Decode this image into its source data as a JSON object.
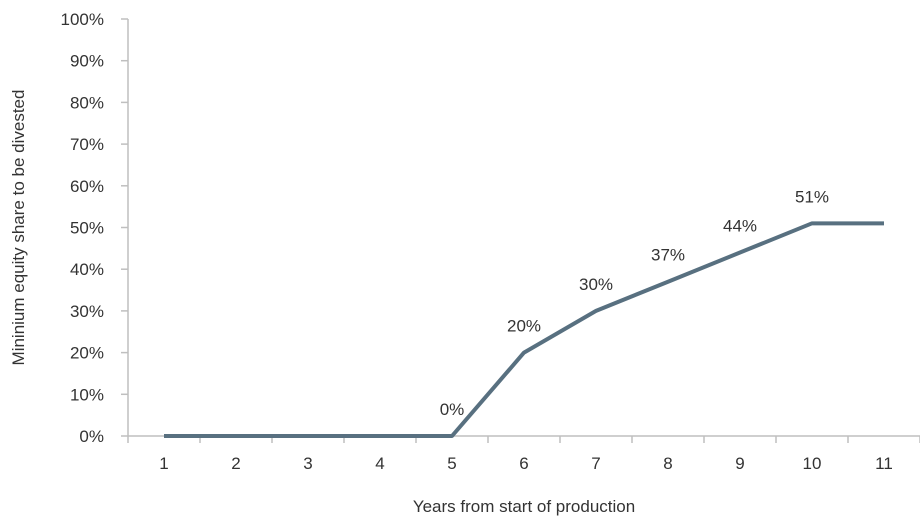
{
  "chart_data": {
    "type": "line",
    "title": "",
    "xlabel": "Years from start of production",
    "ylabel": "Mininium equity share to be divested",
    "categories": [
      "1",
      "2",
      "3",
      "4",
      "5",
      "6",
      "7",
      "8",
      "9",
      "10",
      "11"
    ],
    "series": [
      {
        "values": [
          0,
          0,
          0,
          0,
          0,
          20,
          30,
          37,
          44,
          51,
          51
        ]
      }
    ],
    "data_labels": [
      {
        "index": 4,
        "text": "0%"
      },
      {
        "index": 5,
        "text": "20%"
      },
      {
        "index": 6,
        "text": "30%"
      },
      {
        "index": 7,
        "text": "37%"
      },
      {
        "index": 8,
        "text": "44%"
      },
      {
        "index": 9,
        "text": "51%"
      }
    ],
    "ylim": [
      0,
      100
    ],
    "yticks": [
      "0%",
      "10%",
      "20%",
      "30%",
      "40%",
      "50%",
      "60%",
      "70%",
      "80%",
      "90%",
      "100%"
    ],
    "grid": false,
    "legend": "none",
    "colors": {
      "line": "#587080",
      "axis": "#bfbfbf",
      "text": "#333333"
    }
  }
}
